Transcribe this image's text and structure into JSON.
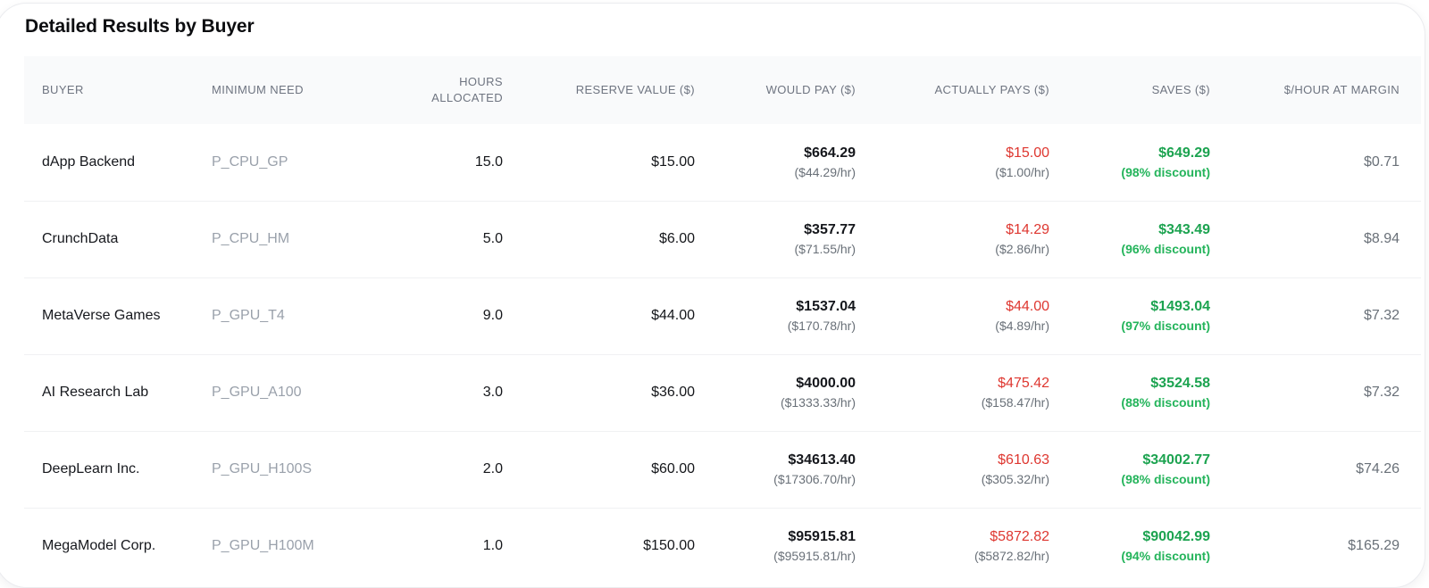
{
  "page": {
    "title": "Detailed Results by Buyer"
  },
  "colors": {
    "red": "#de3730",
    "green": "#1ca350",
    "green_light": "#24b45b",
    "header_text": "#6e7480",
    "muted_text": "#697078"
  },
  "chart_data": {
    "type": "table",
    "title": "Detailed Results by Buyer",
    "columns": [
      {
        "id": "buyer",
        "label": "BUYER",
        "align": "left"
      },
      {
        "id": "need",
        "label": "MINIMUM NEED",
        "align": "left"
      },
      {
        "id": "hours",
        "label": "HOURS ALLOCATED",
        "align": "right"
      },
      {
        "id": "reserve",
        "label": "RESERVE VALUE ($)",
        "align": "right"
      },
      {
        "id": "would",
        "label": "WOULD PAY ($)",
        "align": "right"
      },
      {
        "id": "pays",
        "label": "ACTUALLY PAYS ($)",
        "align": "right"
      },
      {
        "id": "saves",
        "label": "SAVES ($)",
        "align": "right"
      },
      {
        "id": "margin",
        "label": "$/HOUR AT MARGIN",
        "align": "right"
      }
    ],
    "rows": [
      {
        "buyer": "dApp Backend",
        "need": "P_CPU_GP",
        "hours": "15.0",
        "reserve": "$15.00",
        "would_pay": "$664.29",
        "would_pay_rate": "($44.29/hr)",
        "pays": "$15.00",
        "pays_rate": "($1.00/hr)",
        "saves": "$649.29",
        "saves_discount": "(98% discount)",
        "margin": "$0.71"
      },
      {
        "buyer": "CrunchData",
        "need": "P_CPU_HM",
        "hours": "5.0",
        "reserve": "$6.00",
        "would_pay": "$357.77",
        "would_pay_rate": "($71.55/hr)",
        "pays": "$14.29",
        "pays_rate": "($2.86/hr)",
        "saves": "$343.49",
        "saves_discount": "(96% discount)",
        "margin": "$8.94"
      },
      {
        "buyer": "MetaVerse Games",
        "need": "P_GPU_T4",
        "hours": "9.0",
        "reserve": "$44.00",
        "would_pay": "$1537.04",
        "would_pay_rate": "($170.78/hr)",
        "pays": "$44.00",
        "pays_rate": "($4.89/hr)",
        "saves": "$1493.04",
        "saves_discount": "(97% discount)",
        "margin": "$7.32"
      },
      {
        "buyer": "AI Research Lab",
        "need": "P_GPU_A100",
        "hours": "3.0",
        "reserve": "$36.00",
        "would_pay": "$4000.00",
        "would_pay_rate": "($1333.33/hr)",
        "pays": "$475.42",
        "pays_rate": "($158.47/hr)",
        "saves": "$3524.58",
        "saves_discount": "(88% discount)",
        "margin": "$7.32"
      },
      {
        "buyer": "DeepLearn Inc.",
        "need": "P_GPU_H100S",
        "hours": "2.0",
        "reserve": "$60.00",
        "would_pay": "$34613.40",
        "would_pay_rate": "($17306.70/hr)",
        "pays": "$610.63",
        "pays_rate": "($305.32/hr)",
        "saves": "$34002.77",
        "saves_discount": "(98% discount)",
        "margin": "$74.26"
      },
      {
        "buyer": "MegaModel Corp.",
        "need": "P_GPU_H100M",
        "hours": "1.0",
        "reserve": "$150.00",
        "would_pay": "$95915.81",
        "would_pay_rate": "($95915.81/hr)",
        "pays": "$5872.82",
        "pays_rate": "($5872.82/hr)",
        "saves": "$90042.99",
        "saves_discount": "(94% discount)",
        "margin": "$165.29"
      }
    ]
  }
}
